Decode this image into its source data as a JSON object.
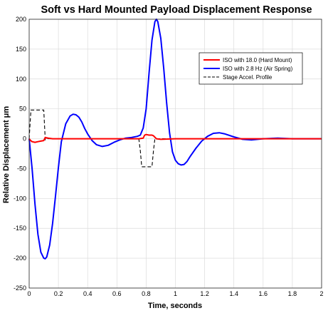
{
  "chart_data": {
    "type": "line",
    "title": "Soft vs Hard Mounted Payload Displacement Response",
    "xlabel": "Time, seconds",
    "ylabel": "Relative Displacement μm",
    "xlim": [
      0,
      2
    ],
    "ylim": [
      -250,
      200
    ],
    "xticks": [
      "0",
      "0.2",
      "0.4",
      "0.6",
      "0.8",
      "1",
      "1.2",
      "1.4",
      "1.6",
      "1.8",
      "2"
    ],
    "yticks": [
      "200",
      "150",
      "100",
      "50",
      "0",
      "-50",
      "-100",
      "-150",
      "-200",
      "-250"
    ],
    "grid": true,
    "legend_position": "top-right",
    "series": [
      {
        "name": "ISO with 18.0 (Hard Mount)",
        "color": "#ff0000",
        "style": "solid",
        "x": [
          0,
          0.01,
          0.02,
          0.04,
          0.06,
          0.08,
          0.1,
          0.11,
          0.13,
          0.16,
          0.2,
          0.4,
          0.6,
          0.7,
          0.75,
          0.78,
          0.79,
          0.8,
          0.82,
          0.84,
          0.85,
          0.87,
          0.9,
          1.0,
          1.2,
          1.5,
          1.8,
          2.0
        ],
        "y": [
          0,
          -3,
          -5,
          -6,
          -5,
          -4,
          -3,
          2,
          1,
          0,
          0,
          0,
          0,
          0,
          0,
          1,
          6,
          7,
          6,
          6,
          5,
          0,
          -1,
          0,
          0,
          0,
          0,
          0
        ]
      },
      {
        "name": "ISO with 2.8 Hz (Air Spring)",
        "color": "#0000ff",
        "style": "solid",
        "x": [
          0,
          0.02,
          0.04,
          0.06,
          0.08,
          0.1,
          0.11,
          0.12,
          0.14,
          0.16,
          0.18,
          0.2,
          0.22,
          0.25,
          0.28,
          0.3,
          0.32,
          0.34,
          0.36,
          0.38,
          0.4,
          0.43,
          0.46,
          0.5,
          0.54,
          0.58,
          0.62,
          0.66,
          0.7,
          0.74,
          0.76,
          0.78,
          0.8,
          0.82,
          0.84,
          0.86,
          0.87,
          0.88,
          0.9,
          0.92,
          0.94,
          0.96,
          0.98,
          1.0,
          1.02,
          1.04,
          1.06,
          1.08,
          1.1,
          1.14,
          1.18,
          1.22,
          1.26,
          1.3,
          1.34,
          1.4,
          1.46,
          1.52,
          1.6,
          1.7,
          1.8,
          1.9,
          2.0
        ],
        "y": [
          0,
          -50,
          -110,
          -160,
          -190,
          -200,
          -201,
          -198,
          -178,
          -142,
          -96,
          -48,
          -5,
          25,
          38,
          41,
          40,
          36,
          28,
          17,
          8,
          -3,
          -10,
          -13,
          -11,
          -6,
          -2,
          1,
          2,
          4,
          6,
          18,
          50,
          110,
          165,
          196,
          200,
          196,
          168,
          118,
          60,
          10,
          -22,
          -36,
          -42,
          -44,
          -43,
          -38,
          -30,
          -16,
          -4,
          4,
          9,
          10,
          8,
          3,
          -1,
          -2,
          0,
          1,
          0,
          0,
          0
        ]
      },
      {
        "name": "Stage Accel. Profile",
        "color": "#000000",
        "style": "dashed",
        "x": [
          0,
          0.005,
          0.012,
          0.1,
          0.11,
          0.12,
          0.75,
          0.76,
          0.77,
          0.84,
          0.85,
          0.86,
          2.0
        ],
        "y": [
          0,
          20,
          48,
          48,
          -2,
          0,
          0,
          -20,
          -47,
          -47,
          -20,
          0,
          0
        ]
      }
    ]
  }
}
